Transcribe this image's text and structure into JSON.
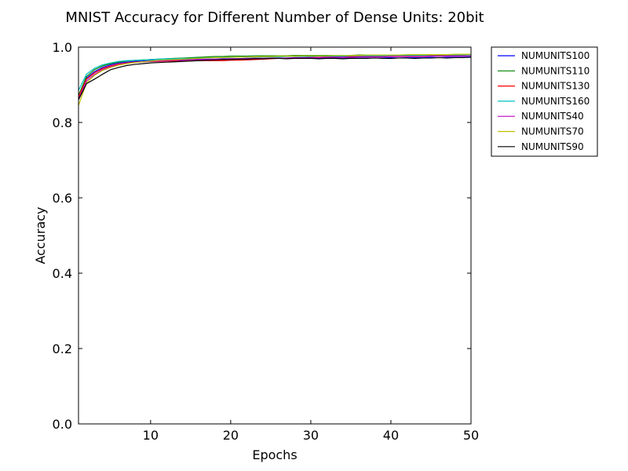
{
  "chart_data": {
    "type": "line",
    "title": "MNIST Accuracy for Different Number of Dense Units: 20bit",
    "xlabel": "Epochs",
    "ylabel": "Accuracy",
    "xlim": [
      1,
      50
    ],
    "ylim": [
      0.0,
      1.0
    ],
    "xticks": [
      10,
      20,
      30,
      40,
      50
    ],
    "yticks": [
      0.0,
      0.2,
      0.4,
      0.6,
      0.8,
      1.0
    ],
    "xtick_labels": [
      "10",
      "20",
      "30",
      "40",
      "50"
    ],
    "ytick_labels": [
      "0.0",
      "0.2",
      "0.4",
      "0.6",
      "0.8",
      "1.0"
    ],
    "grid": false,
    "legend_position": "outside-top-right",
    "x": [
      1,
      2,
      3,
      4,
      5,
      6,
      7,
      8,
      9,
      10,
      11,
      12,
      13,
      14,
      15,
      16,
      17,
      18,
      19,
      20,
      21,
      22,
      23,
      24,
      25,
      26,
      27,
      28,
      29,
      30,
      31,
      32,
      33,
      34,
      35,
      36,
      37,
      38,
      39,
      40,
      41,
      42,
      43,
      44,
      45,
      46,
      47,
      48,
      49,
      50
    ],
    "series": [
      {
        "name": "NUMUNITS100",
        "color": "#0000ff",
        "values": [
          0.87,
          0.918,
          0.935,
          0.946,
          0.953,
          0.958,
          0.96,
          0.962,
          0.963,
          0.964,
          0.965,
          0.966,
          0.966,
          0.967,
          0.967,
          0.968,
          0.968,
          0.968,
          0.969,
          0.969,
          0.969,
          0.969,
          0.97,
          0.97,
          0.97,
          0.97,
          0.97,
          0.97,
          0.97,
          0.971,
          0.97,
          0.971,
          0.971,
          0.97,
          0.971,
          0.971,
          0.971,
          0.971,
          0.971,
          0.972,
          0.971,
          0.972,
          0.972,
          0.972,
          0.973,
          0.972,
          0.973,
          0.973,
          0.973,
          0.974
        ]
      },
      {
        "name": "NUMUNITS110",
        "color": "#008000",
        "values": [
          0.872,
          0.922,
          0.94,
          0.95,
          0.956,
          0.96,
          0.963,
          0.965,
          0.966,
          0.967,
          0.968,
          0.969,
          0.97,
          0.971,
          0.972,
          0.973,
          0.974,
          0.975,
          0.975,
          0.976,
          0.976,
          0.976,
          0.977,
          0.977,
          0.977,
          0.977,
          0.977,
          0.978,
          0.978,
          0.978,
          0.978,
          0.978,
          0.978,
          0.978,
          0.978,
          0.979,
          0.979,
          0.979,
          0.979,
          0.979,
          0.979,
          0.979,
          0.979,
          0.98,
          0.98,
          0.98,
          0.98,
          0.98,
          0.98,
          0.98
        ]
      },
      {
        "name": "NUMUNITS130",
        "color": "#ff0000",
        "values": [
          0.868,
          0.915,
          0.932,
          0.943,
          0.95,
          0.955,
          0.958,
          0.96,
          0.961,
          0.962,
          0.962,
          0.963,
          0.963,
          0.963,
          0.964,
          0.964,
          0.964,
          0.964,
          0.964,
          0.965,
          0.965,
          0.966,
          0.967,
          0.968,
          0.969,
          0.97,
          0.971,
          0.972,
          0.972,
          0.973,
          0.973,
          0.974,
          0.974,
          0.974,
          0.975,
          0.975,
          0.975,
          0.976,
          0.976,
          0.976,
          0.977,
          0.977,
          0.977,
          0.977,
          0.978,
          0.978,
          0.978,
          0.978,
          0.978,
          0.979
        ]
      },
      {
        "name": "NUMUNITS160",
        "color": "#00bfbf",
        "values": [
          0.885,
          0.928,
          0.944,
          0.953,
          0.958,
          0.962,
          0.964,
          0.965,
          0.966,
          0.967,
          0.968,
          0.969,
          0.969,
          0.97,
          0.97,
          0.971,
          0.971,
          0.972,
          0.972,
          0.972,
          0.973,
          0.973,
          0.973,
          0.974,
          0.974,
          0.974,
          0.975,
          0.975,
          0.975,
          0.975,
          0.976,
          0.976,
          0.976,
          0.976,
          0.977,
          0.977,
          0.977,
          0.977,
          0.977,
          0.978,
          0.978,
          0.978,
          0.978,
          0.978,
          0.979,
          0.979,
          0.979,
          0.979,
          0.979,
          0.979
        ]
      },
      {
        "name": "NUMUNITS40",
        "color": "#bf00bf",
        "values": [
          0.862,
          0.91,
          0.928,
          0.94,
          0.948,
          0.953,
          0.957,
          0.959,
          0.961,
          0.962,
          0.963,
          0.964,
          0.965,
          0.965,
          0.966,
          0.967,
          0.967,
          0.968,
          0.968,
          0.969,
          0.969,
          0.97,
          0.97,
          0.97,
          0.971,
          0.971,
          0.971,
          0.972,
          0.972,
          0.972,
          0.972,
          0.973,
          0.973,
          0.973,
          0.973,
          0.974,
          0.974,
          0.974,
          0.974,
          0.975,
          0.975,
          0.975,
          0.975,
          0.975,
          0.976,
          0.976,
          0.976,
          0.976,
          0.976,
          0.977
        ]
      },
      {
        "name": "NUMUNITS70",
        "color": "#bfbf00",
        "values": [
          0.845,
          0.905,
          0.925,
          0.938,
          0.946,
          0.952,
          0.956,
          0.959,
          0.961,
          0.963,
          0.965,
          0.966,
          0.967,
          0.968,
          0.969,
          0.97,
          0.971,
          0.972,
          0.972,
          0.973,
          0.973,
          0.974,
          0.974,
          0.975,
          0.975,
          0.976,
          0.976,
          0.976,
          0.977,
          0.977,
          0.977,
          0.977,
          0.978,
          0.978,
          0.978,
          0.978,
          0.979,
          0.979,
          0.979,
          0.979,
          0.979,
          0.98,
          0.98,
          0.98,
          0.98,
          0.98,
          0.98,
          0.981,
          0.981,
          0.981
        ]
      },
      {
        "name": "NUMUNITS90",
        "color": "#000000",
        "values": [
          0.86,
          0.903,
          0.915,
          0.928,
          0.94,
          0.946,
          0.951,
          0.954,
          0.956,
          0.958,
          0.959,
          0.96,
          0.961,
          0.962,
          0.963,
          0.964,
          0.965,
          0.966,
          0.967,
          0.967,
          0.968,
          0.968,
          0.969,
          0.969,
          0.97,
          0.97,
          0.969,
          0.97,
          0.97,
          0.97,
          0.969,
          0.97,
          0.97,
          0.969,
          0.97,
          0.97,
          0.97,
          0.971,
          0.97,
          0.97,
          0.971,
          0.971,
          0.97,
          0.971,
          0.971,
          0.972,
          0.971,
          0.972,
          0.972,
          0.973
        ]
      }
    ]
  }
}
